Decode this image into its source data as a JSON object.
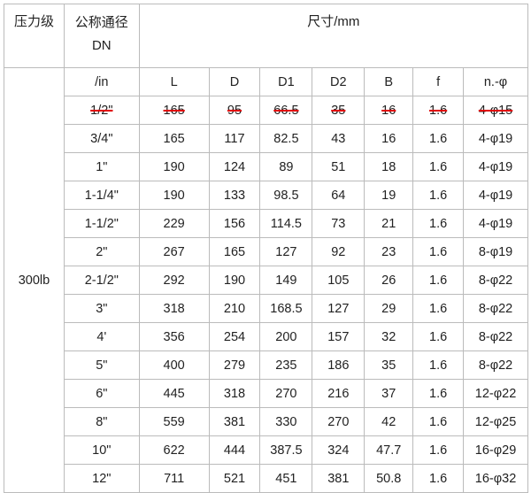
{
  "header": {
    "pressure_class": "压力级",
    "nominal_diameter": "公称通径",
    "nominal_diameter_unit": "DN",
    "dimensions": "尺寸/mm"
  },
  "columns": [
    "/in",
    "L",
    "D",
    "D1",
    "D2",
    "B",
    "f",
    "n.-φ"
  ],
  "pressure_value": "300lb",
  "struck_row_color": "#e00000",
  "rows": [
    {
      "struck": true,
      "cells": [
        "1/2\"",
        "165",
        "95",
        "66.5",
        "35",
        "16",
        "1.6",
        "4-φ15"
      ]
    },
    {
      "cells": [
        "3/4\"",
        "165",
        "117",
        "82.5",
        "43",
        "16",
        "1.6",
        "4-φ19"
      ]
    },
    {
      "cells": [
        "1\"",
        "190",
        "124",
        "89",
        "51",
        "18",
        "1.6",
        "4-φ19"
      ]
    },
    {
      "cells": [
        "1-1/4\"",
        "190",
        "133",
        "98.5",
        "64",
        "19",
        "1.6",
        "4-φ19"
      ]
    },
    {
      "cells": [
        "1-1/2\"",
        "229",
        "156",
        "114.5",
        "73",
        "21",
        "1.6",
        "4-φ19"
      ]
    },
    {
      "cells": [
        "2\"",
        "267",
        "165",
        "127",
        "92",
        "23",
        "1.6",
        "8-φ19"
      ]
    },
    {
      "cells": [
        "2-1/2\"",
        "292",
        "190",
        "149",
        "105",
        "26",
        "1.6",
        "8-φ22"
      ]
    },
    {
      "cells": [
        "3\"",
        "318",
        "210",
        "168.5",
        "127",
        "29",
        "1.6",
        "8-φ22"
      ]
    },
    {
      "cells": [
        "4'",
        "356",
        "254",
        "200",
        "157",
        "32",
        "1.6",
        "8-φ22"
      ]
    },
    {
      "cells": [
        "5\"",
        "400",
        "279",
        "235",
        "186",
        "35",
        "1.6",
        "8-φ22"
      ]
    },
    {
      "cells": [
        "6\"",
        "445",
        "318",
        "270",
        "216",
        "37",
        "1.6",
        "12-φ22"
      ]
    },
    {
      "cells": [
        "8\"",
        "559",
        "381",
        "330",
        "270",
        "42",
        "1.6",
        "12-φ25"
      ]
    },
    {
      "cells": [
        "10\"",
        "622",
        "444",
        "387.5",
        "324",
        "47.7",
        "1.6",
        "16-φ29"
      ]
    },
    {
      "cells": [
        "12\"",
        "711",
        "521",
        "451",
        "381",
        "50.8",
        "1.6",
        "16-φ32"
      ]
    }
  ]
}
